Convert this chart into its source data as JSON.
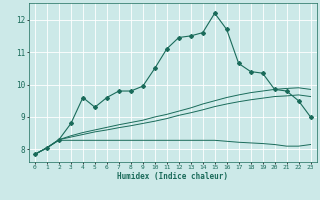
{
  "xlabel": "Humidex (Indice chaleur)",
  "ylabel": "",
  "bg_color": "#cce9e8",
  "grid_color": "#ffffff",
  "line_color": "#1a6b5a",
  "xlim": [
    -0.5,
    23.5
  ],
  "ylim": [
    7.6,
    12.5
  ],
  "yticks": [
    8,
    9,
    10,
    11,
    12
  ],
  "xticks": [
    0,
    1,
    2,
    3,
    4,
    5,
    6,
    7,
    8,
    9,
    10,
    11,
    12,
    13,
    14,
    15,
    16,
    17,
    18,
    19,
    20,
    21,
    22,
    23
  ],
  "series_spiky": [
    7.85,
    8.05,
    8.3,
    8.8,
    9.6,
    9.3,
    9.6,
    9.8,
    9.8,
    9.95,
    10.5,
    11.1,
    11.45,
    11.5,
    11.6,
    12.2,
    11.7,
    10.65,
    10.4,
    10.35,
    9.85,
    9.8,
    9.5,
    9.0
  ],
  "series_linear1": [
    7.85,
    8.05,
    8.3,
    8.42,
    8.52,
    8.6,
    8.68,
    8.76,
    8.83,
    8.9,
    9.0,
    9.08,
    9.18,
    9.28,
    9.4,
    9.5,
    9.6,
    9.68,
    9.75,
    9.8,
    9.85,
    9.88,
    9.9,
    9.85
  ],
  "series_linear2": [
    7.85,
    8.05,
    8.3,
    8.38,
    8.46,
    8.54,
    8.6,
    8.67,
    8.73,
    8.8,
    8.87,
    8.95,
    9.05,
    9.13,
    9.22,
    9.32,
    9.4,
    9.47,
    9.53,
    9.58,
    9.63,
    9.65,
    9.68,
    9.63
  ],
  "series_flat": [
    7.85,
    8.05,
    8.28,
    8.28,
    8.28,
    8.28,
    8.28,
    8.28,
    8.28,
    8.28,
    8.28,
    8.28,
    8.28,
    8.28,
    8.28,
    8.28,
    8.25,
    8.22,
    8.2,
    8.18,
    8.15,
    8.1,
    8.1,
    8.15
  ]
}
